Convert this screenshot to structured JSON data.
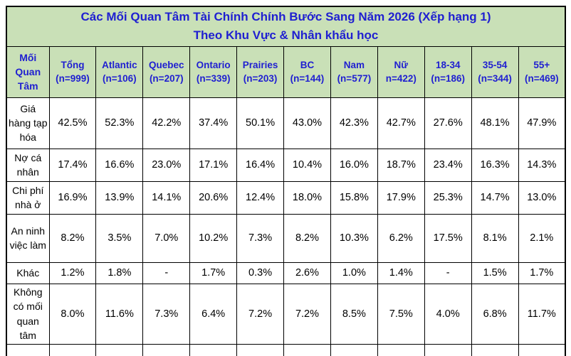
{
  "chart_data": {
    "type": "table",
    "title": "Các Mối Quan Tâm Tài Chính Chính Bước Sang Năm 2026 (Xếp hạng 1)",
    "subtitle": "Theo Khu Vực & Nhân khẩu học",
    "corner_header": "Mối Quan Tâm",
    "columns": [
      {
        "label": "Tổng",
        "n_label": "(n=999)",
        "n": 999
      },
      {
        "label": "Atlantic",
        "n_label": "(n=106)",
        "n": 106
      },
      {
        "label": "Quebec",
        "n_label": "(n=207)",
        "n": 207
      },
      {
        "label": "Ontario",
        "n_label": "(n=339)",
        "n": 339
      },
      {
        "label": "Prairies",
        "n_label": "(n=203)",
        "n": 203
      },
      {
        "label": "BC",
        "n_label": "(n=144)",
        "n": 144
      },
      {
        "label": "Nam",
        "n_label": "(n=577)",
        "n": 577
      },
      {
        "label": "Nữ",
        "n_label": "n=422)",
        "n": 422
      },
      {
        "label": "18-34",
        "n_label": "(n=186)",
        "n": 186
      },
      {
        "label": "35-54",
        "n_label": "(n=344)",
        "n": 344
      },
      {
        "label": "55+",
        "n_label": "(n=469)",
        "n": 469
      }
    ],
    "rows": [
      {
        "label": "Giá hàng tạp hóa",
        "values": [
          "42.5%",
          "52.3%",
          "42.2%",
          "37.4%",
          "50.1%",
          "43.0%",
          "42.3%",
          "42.7%",
          "27.6%",
          "48.1%",
          "47.9%"
        ],
        "values_numeric": [
          42.5,
          52.3,
          42.2,
          37.4,
          50.1,
          43.0,
          42.3,
          42.7,
          27.6,
          48.1,
          47.9
        ]
      },
      {
        "label": "Nợ cá nhân",
        "values": [
          "17.4%",
          "16.6%",
          "23.0%",
          "17.1%",
          "16.4%",
          "10.4%",
          "16.0%",
          "18.7%",
          "23.4%",
          "16.3%",
          "14.3%"
        ],
        "values_numeric": [
          17.4,
          16.6,
          23.0,
          17.1,
          16.4,
          10.4,
          16.0,
          18.7,
          23.4,
          16.3,
          14.3
        ]
      },
      {
        "label": "Chi phí nhà ở",
        "values": [
          "16.9%",
          "13.9%",
          "14.1%",
          "20.6%",
          "12.4%",
          "18.0%",
          "15.8%",
          "17.9%",
          "25.3%",
          "14.7%",
          "13.0%"
        ],
        "values_numeric": [
          16.9,
          13.9,
          14.1,
          20.6,
          12.4,
          18.0,
          15.8,
          17.9,
          25.3,
          14.7,
          13.0
        ]
      },
      {
        "label": "An ninh việc làm",
        "values": [
          "8.2%",
          "3.5%",
          "7.0%",
          "10.2%",
          "7.3%",
          "8.2%",
          "10.3%",
          "6.2%",
          "17.5%",
          "8.1%",
          "2.1%"
        ],
        "values_numeric": [
          8.2,
          3.5,
          7.0,
          10.2,
          7.3,
          8.2,
          10.3,
          6.2,
          17.5,
          8.1,
          2.1
        ]
      },
      {
        "label": "Khác",
        "values": [
          "1.2%",
          "1.8%",
          "-",
          "1.7%",
          "0.3%",
          "2.6%",
          "1.0%",
          "1.4%",
          "-",
          "1.5%",
          "1.7%"
        ],
        "values_numeric": [
          1.2,
          1.8,
          null,
          1.7,
          0.3,
          2.6,
          1.0,
          1.4,
          null,
          1.5,
          1.7
        ]
      },
      {
        "label": "Không có mối quan tâm",
        "values": [
          "8.0%",
          "11.6%",
          "7.3%",
          "6.4%",
          "7.2%",
          "7.2%",
          "8.5%",
          "7.5%",
          "4.0%",
          "6.8%",
          "11.7%"
        ],
        "values_numeric": [
          8.0,
          11.6,
          7.3,
          6.4,
          7.2,
          7.2,
          8.5,
          7.5,
          4.0,
          6.8,
          11.7
        ]
      }
    ]
  },
  "colors": {
    "header_bg": "#c9e0b7",
    "header_text": "#1f1fd1",
    "border": "#000000",
    "body_text": "#000000",
    "cell_bg": "#ffffff"
  }
}
